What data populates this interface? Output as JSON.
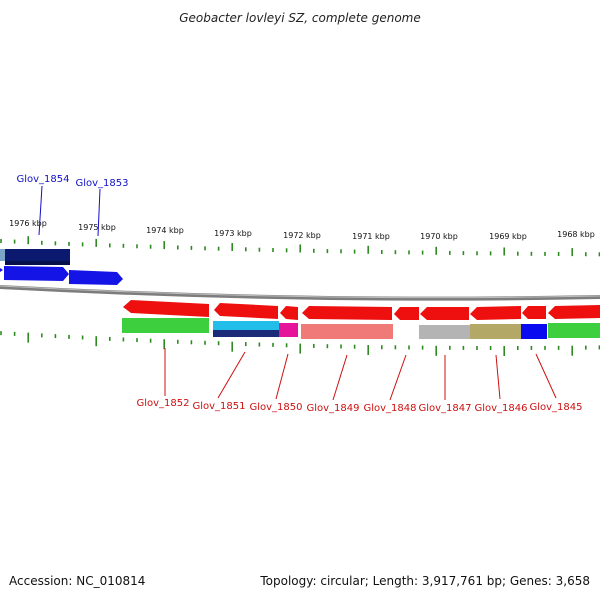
{
  "title": "Geobacter lovleyi SZ, complete genome",
  "footer": {
    "accession": "Accession: NC_010814",
    "topology": "Topology: circular; Length: 3,917,761 bp; Genes: 3,658"
  },
  "colors": {
    "top_label": "#1010c8",
    "bottom_label": "#cc1010",
    "tick": "#2e8b22",
    "backbone": "#8a8a8a"
  },
  "kbp_ticks": [
    {
      "label": "1976 kbp"
    },
    {
      "label": "1975 kbp"
    },
    {
      "label": "1974 kbp"
    },
    {
      "label": "1973 kbp"
    },
    {
      "label": "1972 kbp"
    },
    {
      "label": "1971 kbp"
    },
    {
      "label": "1970 kbp"
    },
    {
      "label": "1969 kbp"
    },
    {
      "label": "1968 kbp"
    }
  ],
  "top_genes": [
    {
      "label": "Glov_1854"
    },
    {
      "label": "Glov_1853"
    }
  ],
  "bottom_genes": [
    {
      "label": "Glov_1852"
    },
    {
      "label": "Glov_1851"
    },
    {
      "label": "Glov_1850"
    },
    {
      "label": "Glov_1849"
    },
    {
      "label": "Glov_1848"
    },
    {
      "label": "Glov_1847"
    },
    {
      "label": "Glov_1846"
    },
    {
      "label": "Glov_1845"
    }
  ]
}
